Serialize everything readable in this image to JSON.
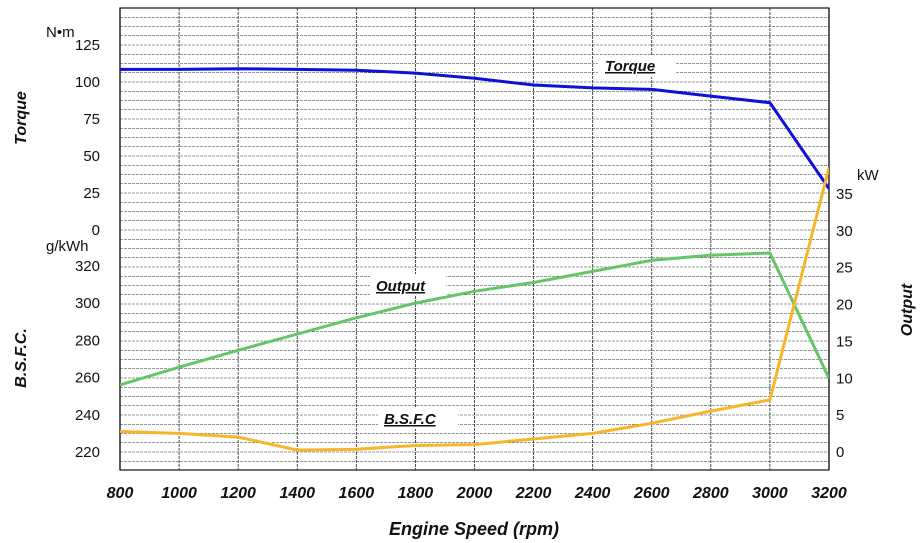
{
  "chart_data": {
    "type": "line",
    "xlabel": "Engine Speed  (rpm)",
    "x": [
      800,
      1000,
      1200,
      1400,
      1600,
      1800,
      2000,
      2200,
      2400,
      2600,
      2800,
      3000,
      3200
    ],
    "x_ticks": [
      "800",
      "1000",
      "1200",
      "1400",
      "1600",
      "1800",
      "2000",
      "2200",
      "2400",
      "2600",
      "2800",
      "3000",
      "3200"
    ],
    "axes": {
      "torque": {
        "label": "Torque",
        "unit": "N•m",
        "ticks": [
          "0",
          "25",
          "50",
          "75",
          "100",
          "125"
        ],
        "range": [
          0,
          125
        ]
      },
      "bsfc": {
        "label": "B.S.F.C.",
        "unit": "g/kWh",
        "ticks": [
          "220",
          "240",
          "260",
          "280",
          "300",
          "320"
        ],
        "range": [
          220,
          320
        ]
      },
      "output": {
        "label": "Output",
        "unit": "kW",
        "ticks": [
          "0",
          "5",
          "10",
          "15",
          "20",
          "25",
          "30",
          "35"
        ],
        "range": [
          0,
          35
        ]
      }
    },
    "series": [
      {
        "name": "Torque",
        "axis": "torque",
        "color": "#1010d8",
        "x": [
          800,
          1000,
          1200,
          1400,
          1600,
          1800,
          2000,
          2200,
          2400,
          2600,
          2800,
          3000,
          3200
        ],
        "values": [
          108.5,
          108.5,
          109,
          108.5,
          108,
          106,
          102.5,
          98,
          96,
          95,
          90.5,
          86,
          28
        ]
      },
      {
        "name": "Output",
        "axis": "output",
        "color": "#66c46a",
        "x": [
          800,
          1000,
          1200,
          1400,
          1600,
          1800,
          2000,
          2200,
          2400,
          2600,
          2800,
          3000,
          3200
        ],
        "values": [
          9.1,
          11.5,
          13.8,
          16,
          18.2,
          20.2,
          21.8,
          23,
          24.5,
          26,
          26.7,
          27,
          10
        ]
      },
      {
        "name": "B.S.F.C",
        "axis": "bsfc",
        "color": "#f7b52b",
        "x": [
          800,
          1000,
          1200,
          1400,
          1600,
          1800,
          2000,
          2200,
          2400,
          2600,
          2800,
          3000,
          3200
        ],
        "values": [
          231,
          230,
          228,
          221,
          221.5,
          223.5,
          224,
          227,
          230,
          235.5,
          242,
          248,
          373
        ]
      }
    ],
    "grid": true
  }
}
